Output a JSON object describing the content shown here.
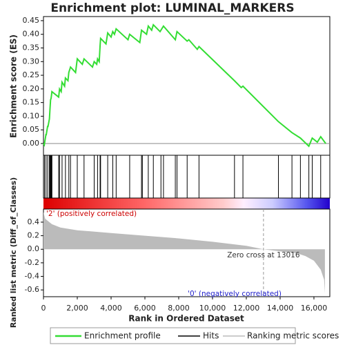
{
  "chart_data": [
    {
      "type": "line",
      "title": "Enrichment plot: LUMINAL_MARKERS",
      "name": "Enrichment profile",
      "ylabel": "Enrichment score (ES)",
      "color": "#33dd33",
      "x": [
        0,
        50,
        150,
        160,
        250,
        260,
        350,
        380,
        420,
        450,
        480,
        500,
        900,
        950,
        1050,
        1100,
        1250,
        1300,
        1450,
        1500,
        1600,
        1900,
        2000,
        2300,
        2400,
        2900,
        3000,
        3150,
        3200,
        3300,
        3350,
        3380,
        3700,
        3800,
        4000,
        4100,
        4200,
        4300,
        5000,
        5100,
        5700,
        5800,
        6100,
        6200,
        6400,
        6500,
        6900,
        7100,
        7800,
        7900,
        8500,
        8600,
        9100,
        9200,
        11300,
        11700,
        11800,
        13900,
        14700,
        15200,
        15700,
        15900,
        16200,
        16400,
        16700
      ],
      "values": [
        0,
        -0.005,
        0.035,
        0.03,
        0.065,
        0.06,
        0.09,
        0.12,
        0.16,
        0.165,
        0.18,
        0.19,
        0.17,
        0.2,
        0.19,
        0.225,
        0.21,
        0.24,
        0.23,
        0.26,
        0.28,
        0.26,
        0.31,
        0.29,
        0.31,
        0.28,
        0.3,
        0.29,
        0.31,
        0.3,
        0.36,
        0.385,
        0.365,
        0.405,
        0.39,
        0.41,
        0.4,
        0.42,
        0.38,
        0.4,
        0.37,
        0.415,
        0.4,
        0.43,
        0.415,
        0.435,
        0.41,
        0.43,
        0.38,
        0.41,
        0.375,
        0.38,
        0.345,
        0.355,
        0.23,
        0.205,
        0.21,
        0.08,
        0.04,
        0.02,
        -0.01,
        0.02,
        0.005,
        0.025,
        0
      ],
      "xlim": [
        0,
        16940
      ],
      "ylim": [
        -0.043,
        0.465
      ],
      "yticks": [
        {
          "value": 0,
          "label": "0.00"
        },
        {
          "value": 0.05,
          "label": "0.05"
        },
        {
          "value": 0.1,
          "label": "0.10"
        },
        {
          "value": 0.15,
          "label": "0.15"
        },
        {
          "value": 0.2,
          "label": "0.20"
        },
        {
          "value": 0.25,
          "label": "0.25"
        },
        {
          "value": 0.3,
          "label": "0.30"
        },
        {
          "value": 0.35,
          "label": "0.35"
        },
        {
          "value": 0.4,
          "label": "0.40"
        },
        {
          "value": 0.45,
          "label": "0.45"
        }
      ]
    },
    {
      "type": "rug",
      "name": "Hits",
      "color": "#000000",
      "xlim": [
        0,
        16940
      ],
      "x": [
        60,
        150,
        250,
        350,
        380,
        420,
        450,
        480,
        500,
        900,
        950,
        1100,
        1300,
        1500,
        1600,
        2000,
        2400,
        3000,
        3200,
        3350,
        3380,
        3800,
        4100,
        4300,
        5100,
        5800,
        5850,
        6200,
        6500,
        6950,
        7100,
        7800,
        7900,
        8500,
        9200,
        11300,
        11800,
        13900,
        14700,
        15200,
        15700,
        15900,
        16400
      ]
    },
    {
      "type": "area",
      "name": "Ranking metric scores",
      "ylabel": "Ranked list metric (Diff_of_Classes)",
      "xlabel": "Rank in Ordered Dataset",
      "color": "#bbbbbb",
      "x": [
        0,
        100,
        500,
        1000,
        2000,
        4000,
        6000,
        8000,
        10000,
        12000,
        13016,
        14000,
        15000,
        15500,
        16000,
        16400,
        16600,
        16650
      ],
      "values": [
        0.55,
        0.45,
        0.37,
        0.32,
        0.28,
        0.24,
        0.2,
        0.16,
        0.11,
        0.05,
        0,
        -0.03,
        -0.06,
        -0.1,
        -0.17,
        -0.3,
        -0.45,
        -0.65
      ],
      "xlim": [
        0,
        16940
      ],
      "ylim": [
        -0.7,
        0.593
      ],
      "yticks": [
        0.4,
        0.2,
        {
          "value": 0,
          "label": "0.0"
        },
        -0.2,
        -0.4,
        -0.6
      ],
      "xticks": [
        0,
        {
          "value": 2000,
          "label": "2,000"
        },
        {
          "value": 4000,
          "label": "4,000"
        },
        {
          "value": 6000,
          "label": "6,000"
        },
        {
          "value": 8000,
          "label": "8,000"
        },
        {
          "value": 10000,
          "label": "10,000"
        },
        {
          "value": 12000,
          "label": "12,000"
        },
        {
          "value": 14000,
          "label": "14,000"
        },
        {
          "value": 16000,
          "label": "16,000"
        }
      ],
      "zero_cross": 13016,
      "annotations": [
        {
          "text": "'2' (positively correlated)",
          "color": "#cc0000"
        },
        {
          "text": "Zero cross at 13016",
          "color": "#333333"
        },
        {
          "text": "'0' (negatively correlated)",
          "color": "#2222cc"
        }
      ]
    }
  ]
}
